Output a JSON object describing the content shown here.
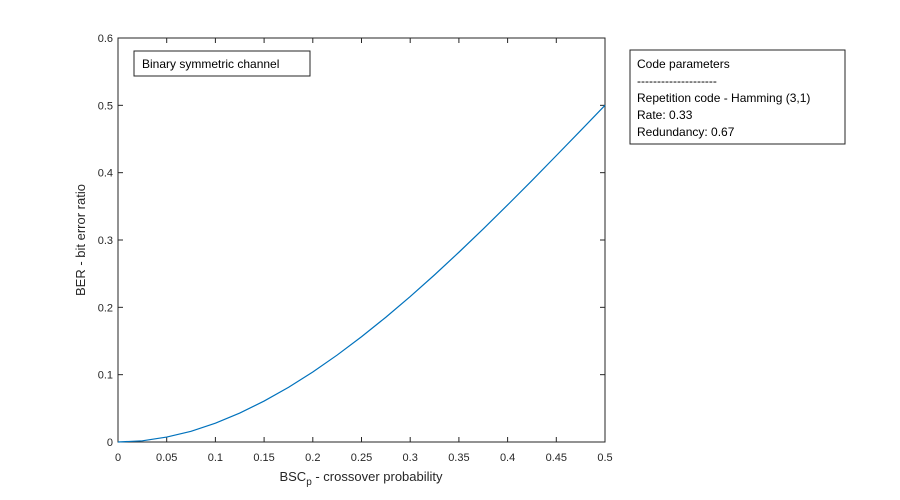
{
  "chart_data": {
    "type": "line",
    "title": "",
    "xlabel": "BSC",
    "xlabel_subscript": "p",
    "xlabel_suffix": " -  crossover probability",
    "ylabel": "BER - bit error ratio",
    "xlim": [
      0,
      0.5
    ],
    "ylim": [
      0,
      0.6
    ],
    "xticks": [
      "0",
      "0.05",
      "0.1",
      "0.15",
      "0.2",
      "0.25",
      "0.3",
      "0.35",
      "0.4",
      "0.45",
      "0.5"
    ],
    "yticks": [
      "0",
      "0.1",
      "0.2",
      "0.3",
      "0.4",
      "0.5",
      "0.6"
    ],
    "grid": false,
    "series": [
      {
        "color": "#0072BD",
        "x": [
          0,
          0.025,
          0.05,
          0.075,
          0.1,
          0.125,
          0.15,
          0.175,
          0.2,
          0.225,
          0.25,
          0.275,
          0.3,
          0.325,
          0.35,
          0.375,
          0.4,
          0.425,
          0.45,
          0.475,
          0.5
        ],
        "y": [
          0,
          0.0018,
          0.0073,
          0.0159,
          0.028,
          0.043,
          0.0608,
          0.0811,
          0.104,
          0.1291,
          0.1563,
          0.1853,
          0.216,
          0.2482,
          0.2818,
          0.3164,
          0.352,
          0.3883,
          0.4253,
          0.4625,
          0.5
        ]
      }
    ],
    "annotation": {
      "text": "Binary symmetric channel",
      "placement": "top-left inside axes"
    },
    "legend": {
      "placement": "outside right",
      "lines": [
        "Code parameters",
        "--------------------",
        "Repetition code - Hamming (3,1)",
        "Rate: 0.33",
        "Redundancy: 0.67"
      ]
    }
  }
}
